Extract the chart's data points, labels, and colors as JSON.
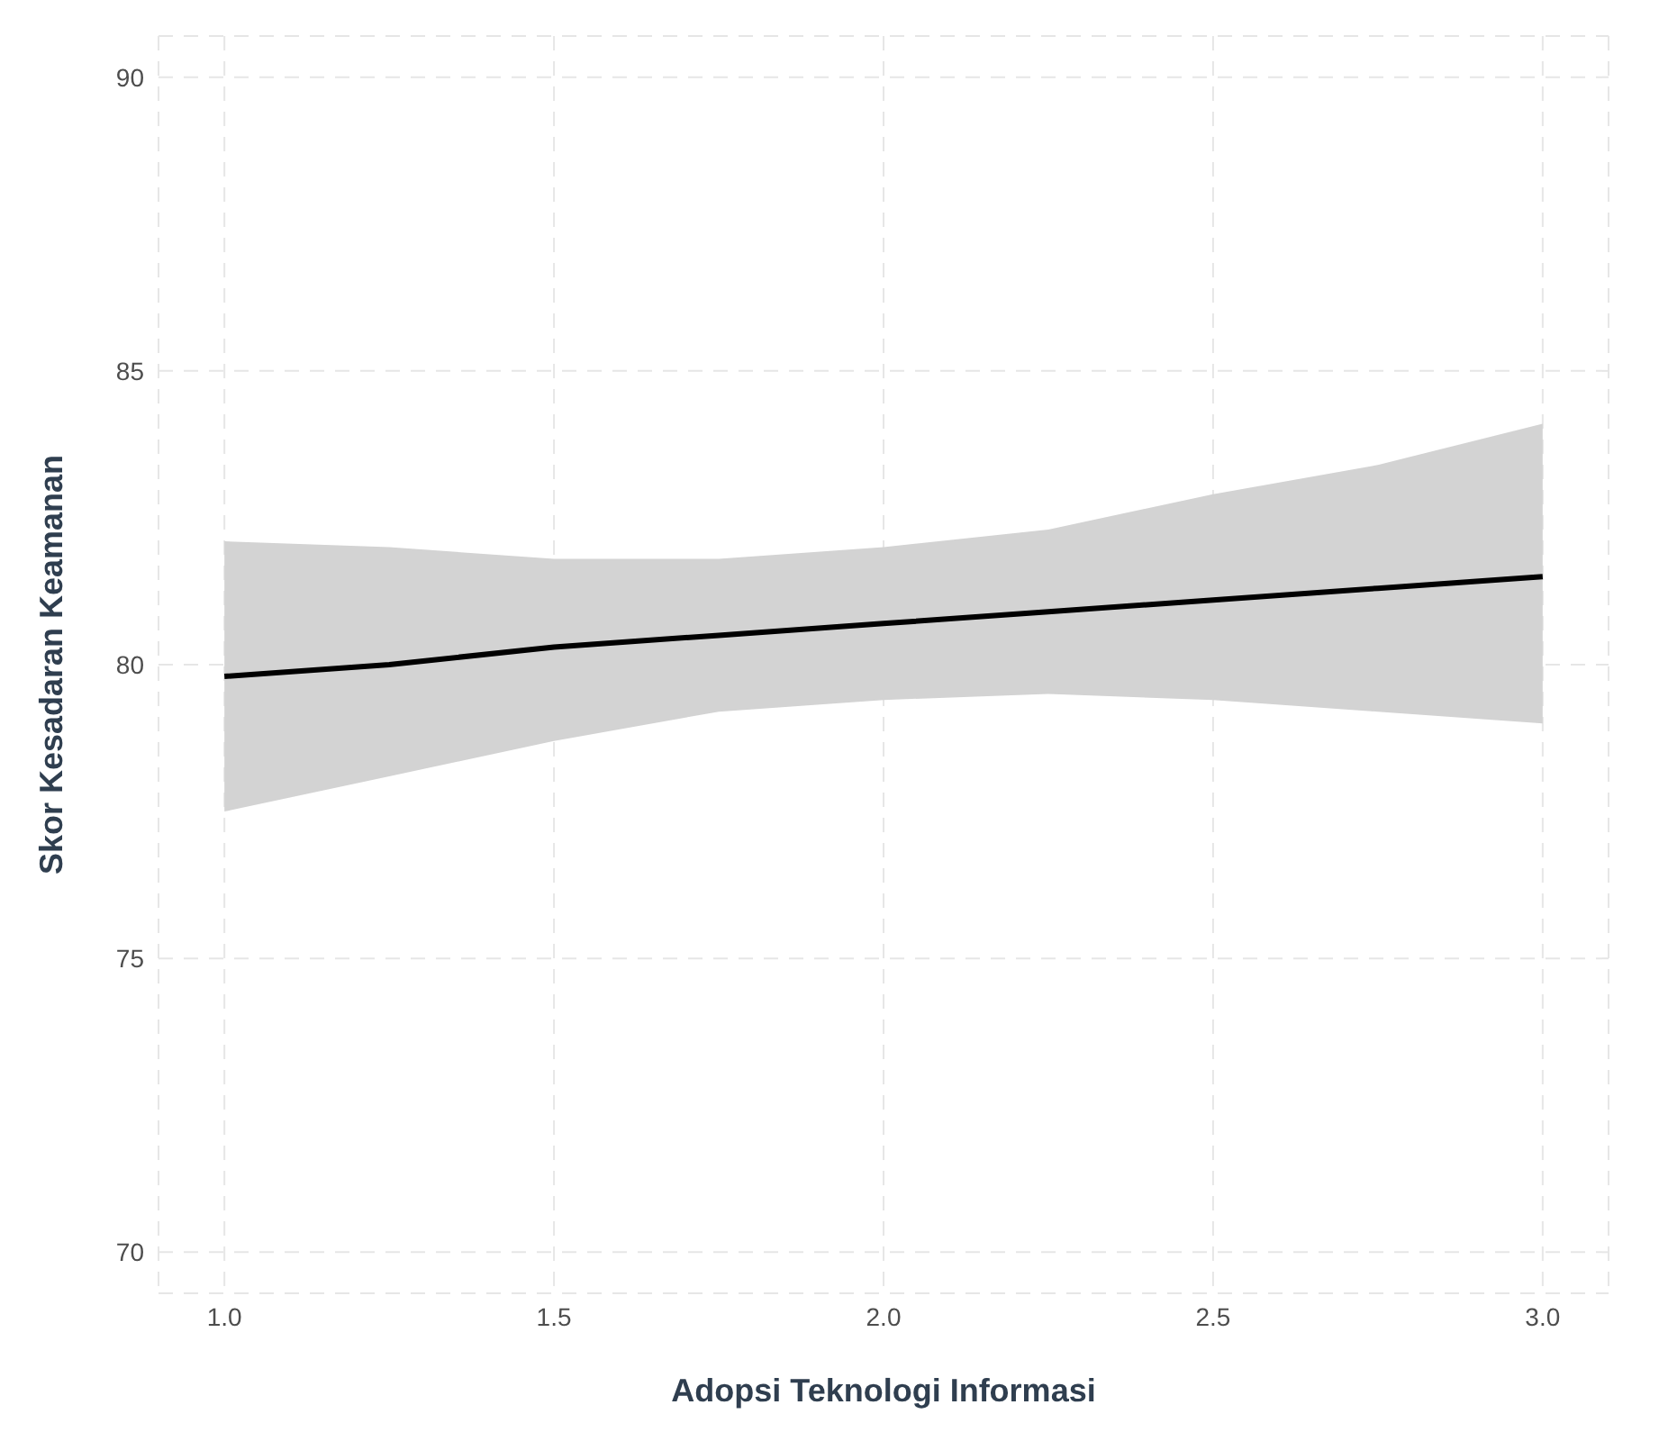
{
  "chart_data": {
    "type": "line",
    "xlabel": "Adopsi Teknologi Informasi",
    "ylabel": "Skor Kesadaran Keamanan",
    "x": [
      1.0,
      1.25,
      1.5,
      1.75,
      2.0,
      2.25,
      2.5,
      2.75,
      3.0
    ],
    "series": [
      {
        "color": "#000000",
        "values": [
          79.8,
          80.0,
          80.3,
          80.5,
          80.7,
          80.9,
          81.1,
          81.3,
          81.5
        ],
        "lower": [
          77.5,
          78.1,
          78.7,
          79.2,
          79.4,
          79.5,
          79.4,
          79.2,
          79.0
        ],
        "upper": [
          82.1,
          82.0,
          81.8,
          81.8,
          82.0,
          82.3,
          82.9,
          83.4,
          84.1
        ]
      }
    ],
    "xlim": [
      0.9,
      3.1
    ],
    "ylim": [
      69.3,
      90.7
    ],
    "xticks": [
      {
        "value": 1,
        "label": "1.0"
      },
      {
        "value": 1.5,
        "label": "1.5"
      },
      {
        "value": 2,
        "label": "2.0"
      },
      {
        "value": 2.5,
        "label": "2.5"
      },
      {
        "value": 3,
        "label": "3.0"
      }
    ],
    "yticks": [
      70,
      75,
      80,
      85,
      90
    ],
    "grid": true,
    "marker": "none",
    "line_style": "solid"
  }
}
